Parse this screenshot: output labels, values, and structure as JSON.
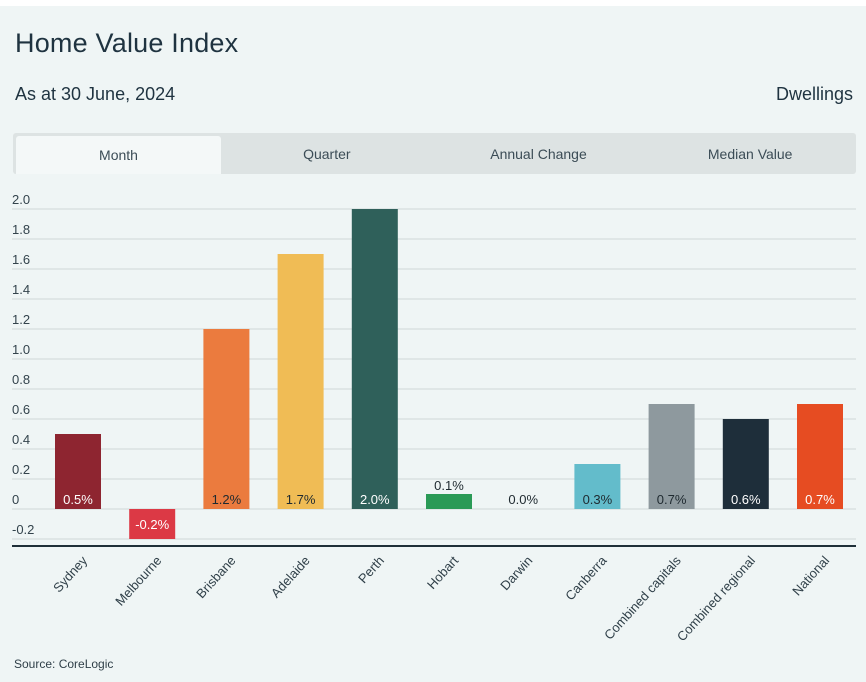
{
  "header": {
    "title": "Home Value Index",
    "subtitle": "As at 30 June, 2024",
    "dwellings_label": "Dwellings"
  },
  "tabs": [
    {
      "label": "Month",
      "active": true
    },
    {
      "label": "Quarter",
      "active": false
    },
    {
      "label": "Annual Change",
      "active": false
    },
    {
      "label": "Median Value",
      "active": false
    }
  ],
  "footer": {
    "source": "Source: CoreLogic"
  },
  "chart_data": {
    "type": "bar",
    "title": "",
    "xlabel": "",
    "ylabel": "",
    "ylim": [
      -0.2,
      2.0
    ],
    "yticks": [
      "2.0",
      "1.8",
      "1.6",
      "1.4",
      "1.2",
      "1.0",
      "0.8",
      "0.6",
      "0.4",
      "0.2",
      "0",
      "-0.2"
    ],
    "grid": true,
    "categories": [
      "Sydney",
      "Melbourne",
      "Brisbane",
      "Adelaide",
      "Perth",
      "Hobart",
      "Darwin",
      "Canberra",
      "Combined capitals",
      "Combined regional",
      "National"
    ],
    "values": [
      0.5,
      -0.2,
      1.2,
      1.7,
      2.0,
      0.1,
      0.0,
      0.3,
      0.7,
      0.6,
      0.7
    ],
    "data_labels": [
      "0.5%",
      "-0.2%",
      "1.2%",
      "1.7%",
      "2.0%",
      "0.1%",
      "0.0%",
      "0.3%",
      "0.7%",
      "0.6%",
      "0.7%"
    ],
    "colors": [
      "#8e2530",
      "#dc3945",
      "#eb7b3e",
      "#f0bc55",
      "#2f605a",
      "#2a9a56",
      "#2a9a56",
      "#63bccb",
      "#8e999e",
      "#1e2e3a",
      "#e64c22"
    ],
    "label_colors": [
      "#ffffff",
      "#ffffff",
      "#1f2a30",
      "#1f2a30",
      "#ffffff",
      "#1f2a30",
      "#1f2a30",
      "#1f2a30",
      "#1f2a30",
      "#ffffff",
      "#ffffff"
    ]
  }
}
